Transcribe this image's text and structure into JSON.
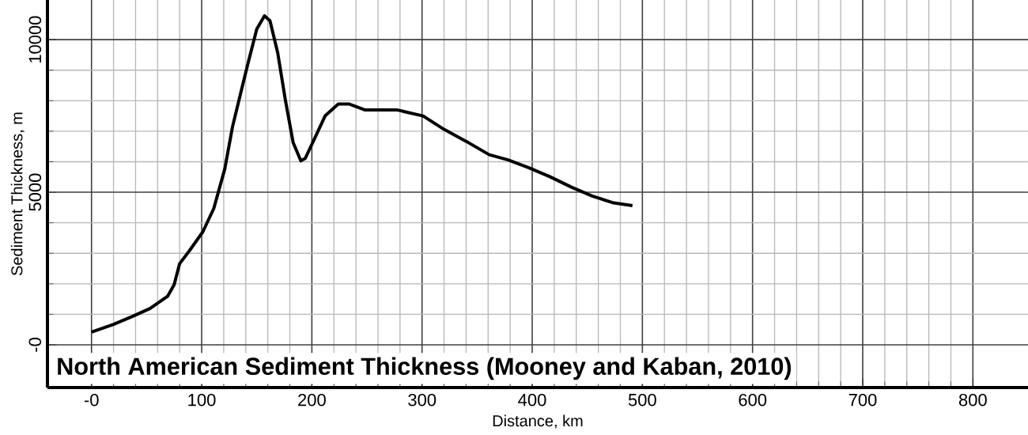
{
  "chart_data": {
    "type": "line",
    "title": "North American Sediment Thickness (Mooney and Kaban, 2010)",
    "xlabel": "Distance, km",
    "ylabel": "Sediment Thickness, m",
    "x": [
      0,
      20,
      37,
      53,
      69,
      75,
      80,
      89,
      101,
      111,
      121,
      128,
      135,
      142,
      150,
      157,
      162,
      169,
      176,
      183,
      190,
      194,
      202,
      212,
      224,
      234,
      248,
      277,
      301,
      320,
      340,
      361,
      378,
      397,
      416,
      436,
      455,
      474,
      491
    ],
    "series": [
      {
        "color": "#000000",
        "values": [
          415,
          670,
          930,
          1190,
          1590,
          1970,
          2660,
          3090,
          3700,
          4470,
          5770,
          7150,
          8190,
          9220,
          10350,
          10780,
          10620,
          9570,
          8010,
          6630,
          6030,
          6110,
          6720,
          7500,
          7890,
          7890,
          7700,
          7700,
          7500,
          7060,
          6670,
          6230,
          6060,
          5800,
          5510,
          5160,
          4870,
          4650,
          4560
        ]
      }
    ],
    "xlim": [
      -40,
      850
    ],
    "ylim": [
      -1400,
      11300
    ],
    "xticks": [
      {
        "value": 0,
        "label": "-0"
      },
      100,
      200,
      300,
      400,
      500,
      600,
      700,
      800
    ],
    "yticks": [
      {
        "value": 0,
        "label": "-0"
      },
      5000,
      10000
    ],
    "grid": true,
    "marker": "none",
    "line_style": "solid"
  }
}
